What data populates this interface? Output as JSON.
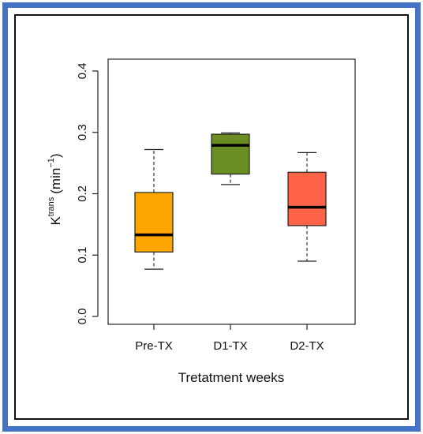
{
  "colors": {
    "frame_outer": "#4472c4",
    "frame_inner": "#111111"
  },
  "chart_data": {
    "type": "boxplot",
    "title": "",
    "xlabel": "Tretatment weeks",
    "ylabel_base": "K",
    "ylabel_sup": "trans",
    "ylabel_unit": "(min",
    "ylabel_unit_sup": "−1",
    "ylabel_close": ")",
    "ylim": [
      0.0,
      0.4
    ],
    "yticks": [
      "0.0",
      "0.1",
      "0.2",
      "0.3",
      "0.4"
    ],
    "grid": false,
    "legend": "none",
    "categories": [
      "Pre-TX",
      "D1-TX",
      "D2-TX"
    ],
    "boxes": [
      {
        "label": "Pre-TX",
        "whisker_low": 0.077,
        "q1": 0.105,
        "median": 0.133,
        "q3": 0.202,
        "whisker_high": 0.272,
        "color": "#ffa500"
      },
      {
        "label": "D1-TX",
        "whisker_low": 0.215,
        "q1": 0.232,
        "median": 0.279,
        "q3": 0.297,
        "whisker_high": 0.299,
        "color": "#6b8e23"
      },
      {
        "label": "D2-TX",
        "whisker_low": 0.09,
        "q1": 0.148,
        "median": 0.178,
        "q3": 0.235,
        "whisker_high": 0.267,
        "color": "#ff6347"
      }
    ]
  }
}
